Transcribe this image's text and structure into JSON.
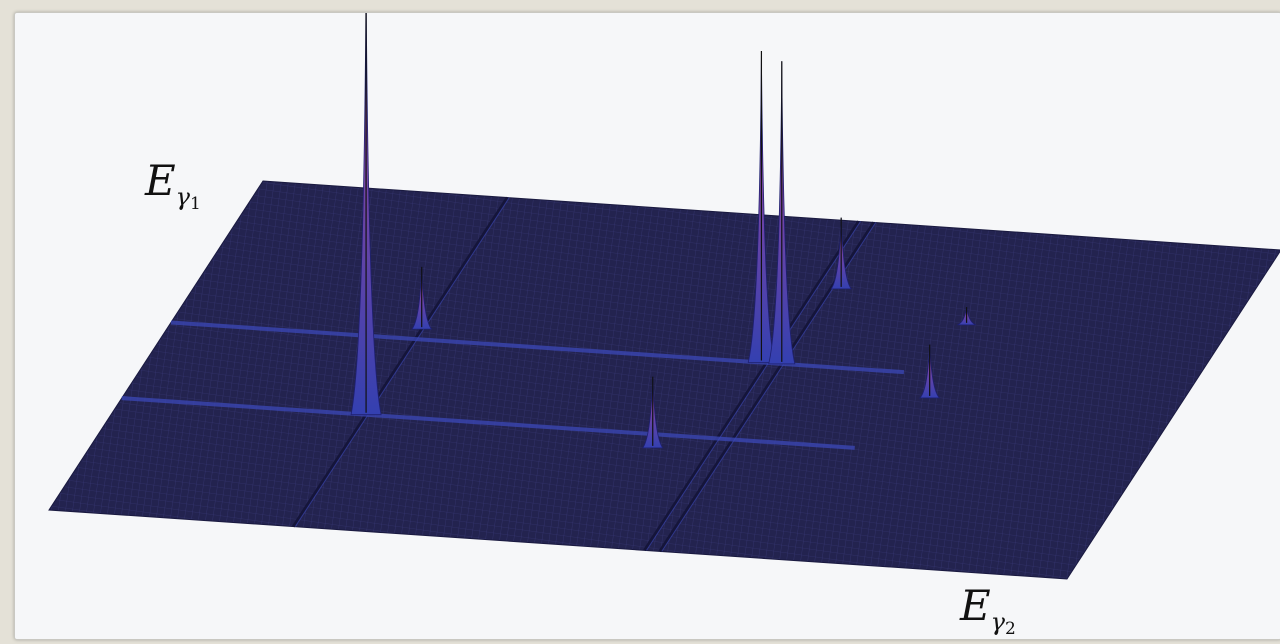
{
  "axes": {
    "e1": {
      "symbol": "E",
      "sub": "γ",
      "subsub": "1"
    },
    "e2": {
      "symbol": "E",
      "sub": "γ",
      "subsub": "2"
    }
  },
  "colors": {
    "surface": "#23234f",
    "mesh": "#3a3a7a",
    "ridge": "#3b48b8",
    "peak_base": "#3440b0",
    "peak_top": "#b04a9c",
    "frame_bg": "#f6f7f9",
    "page_bg": "#e4e1d7"
  },
  "peaks": [
    {
      "name": "peak-1",
      "u": 0.24,
      "v": 0.66,
      "height": 1.0
    },
    {
      "name": "peak-2",
      "u": 0.58,
      "v": 0.43,
      "height": 0.7
    },
    {
      "name": "peak-3",
      "u": 0.6,
      "v": 0.43,
      "height": 0.68
    },
    {
      "name": "peak-4",
      "u": 0.24,
      "v": 0.4,
      "height": 0.14
    },
    {
      "name": "peak-5",
      "u": 0.61,
      "v": 0.2,
      "height": 0.16
    },
    {
      "name": "peak-6",
      "u": 0.53,
      "v": 0.7,
      "height": 0.16
    },
    {
      "name": "peak-7",
      "u": 0.76,
      "v": 0.5,
      "height": 0.12
    },
    {
      "name": "peak-8",
      "u": 0.75,
      "v": 0.28,
      "height": 0.04
    }
  ]
}
